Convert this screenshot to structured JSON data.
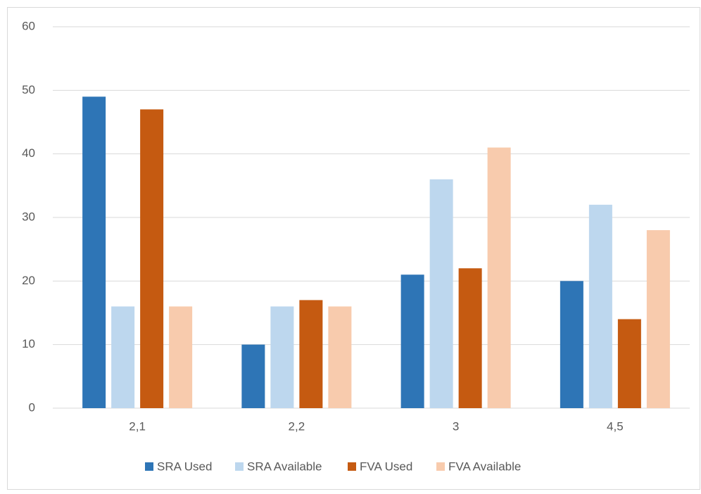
{
  "chart_data": {
    "type": "bar",
    "categories": [
      "2,1",
      "2,2",
      "3",
      "4,5"
    ],
    "series": [
      {
        "name": "SRA Used",
        "color": "#2e75b6",
        "values": [
          49,
          10,
          21,
          20
        ]
      },
      {
        "name": "SRA Available",
        "color": "#bdd7ee",
        "values": [
          16,
          16,
          36,
          32
        ]
      },
      {
        "name": "FVA Used",
        "color": "#c55a11",
        "values": [
          47,
          17,
          22,
          14
        ]
      },
      {
        "name": "FVA Available",
        "color": "#f8cbad",
        "values": [
          16,
          16,
          41,
          28
        ]
      }
    ],
    "ylim": [
      0,
      60
    ],
    "yticks": [
      0,
      10,
      20,
      30,
      40,
      50,
      60
    ],
    "grid": true,
    "legend": "bottom"
  }
}
